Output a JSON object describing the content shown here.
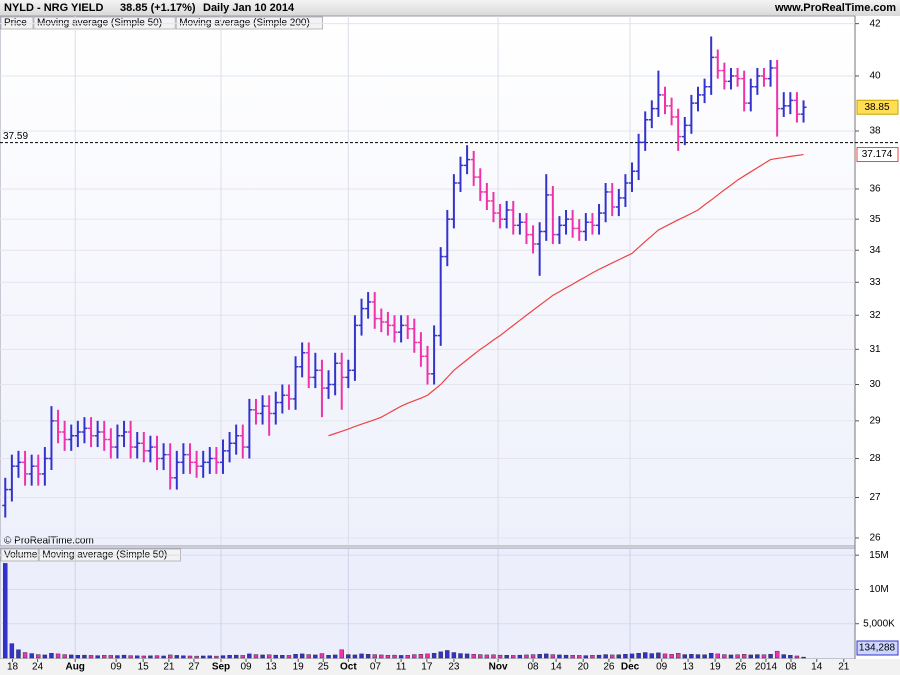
{
  "chart_data": {
    "type": "ohlc",
    "header": {
      "symbol": "NYLD - NRG YIELD",
      "quote": "38.85 (+1.17%)",
      "period": "Daily  Jan 10 2014",
      "site": "www.ProRealTime.com"
    },
    "legend": [
      {
        "name": "Price",
        "color": "#000000"
      },
      {
        "name": "Moving average (Simple 50)",
        "color": "#ee4444"
      },
      {
        "name": "Moving average (Simple 200)",
        "color": "#333366"
      }
    ],
    "watermark": "© ProRealTime.com",
    "up_color": "#3333cc",
    "down_color": "#ee33aa",
    "log_scale": true,
    "grid": true,
    "ylim": [
      25.83,
      42.3
    ],
    "yticks": [
      26,
      27,
      28,
      29,
      30,
      31,
      32,
      33,
      34,
      35,
      36,
      38,
      40,
      42
    ],
    "xlim": [
      -0.8,
      128.8
    ],
    "xticks": [
      {
        "value": 1.1,
        "label": "18"
      },
      {
        "value": 4.9,
        "label": "24"
      },
      {
        "value": 10.6,
        "label": "Aug"
      },
      {
        "value": 16.8,
        "label": "09"
      },
      {
        "value": 20.9,
        "label": "15"
      },
      {
        "value": 24.8,
        "label": "21"
      },
      {
        "value": 28.6,
        "label": "27"
      },
      {
        "value": 32.7,
        "label": "Sep"
      },
      {
        "value": 36.5,
        "label": "09"
      },
      {
        "value": 40.3,
        "label": "13"
      },
      {
        "value": 44.4,
        "label": "19"
      },
      {
        "value": 48.2,
        "label": "25"
      },
      {
        "value": 52.0,
        "label": "Oct"
      },
      {
        "value": 56.1,
        "label": "07"
      },
      {
        "value": 60.0,
        "label": "11"
      },
      {
        "value": 63.9,
        "label": "17"
      },
      {
        "value": 68.0,
        "label": "23"
      },
      {
        "value": 74.7,
        "label": "Nov"
      },
      {
        "value": 80.0,
        "label": "08"
      },
      {
        "value": 83.5,
        "label": "14"
      },
      {
        "value": 87.6,
        "label": "20"
      },
      {
        "value": 91.5,
        "label": "26"
      },
      {
        "value": 94.7,
        "label": "Dec"
      },
      {
        "value": 99.5,
        "label": "09"
      },
      {
        "value": 103.5,
        "label": "13"
      },
      {
        "value": 107.6,
        "label": "19"
      },
      {
        "value": 111.5,
        "label": "26"
      },
      {
        "value": 115.3,
        "label": "2014"
      },
      {
        "value": 119.1,
        "label": "08"
      },
      {
        "value": 123.0,
        "label": "14"
      },
      {
        "value": 127.1,
        "label": "21"
      }
    ],
    "hline": {
      "value": 37.59,
      "label": "37.59"
    },
    "bars": [
      [
        26.8,
        27.5,
        26.5,
        27.2
      ],
      [
        27.2,
        28.1,
        26.9,
        27.8
      ],
      [
        27.8,
        28.2,
        27.5,
        27.9
      ],
      [
        27.9,
        28.2,
        27.3,
        27.6
      ],
      [
        27.6,
        28.1,
        27.3,
        27.8
      ],
      [
        27.8,
        28.1,
        27.3,
        27.6
      ],
      [
        27.6,
        28.3,
        27.3,
        28.0
      ],
      [
        28.0,
        29.4,
        27.7,
        29.0
      ],
      [
        29.0,
        29.3,
        28.4,
        28.7
      ],
      [
        28.7,
        29.0,
        28.2,
        28.5
      ],
      [
        28.5,
        28.9,
        28.2,
        28.6
      ],
      [
        28.6,
        29.0,
        28.3,
        28.7
      ],
      [
        28.7,
        29.1,
        28.4,
        28.8
      ],
      [
        28.8,
        29.1,
        28.3,
        28.6
      ],
      [
        28.6,
        29.0,
        28.3,
        28.7
      ],
      [
        28.7,
        29.0,
        28.2,
        28.5
      ],
      [
        28.5,
        28.8,
        28.0,
        28.3
      ],
      [
        28.3,
        28.9,
        28.0,
        28.6
      ],
      [
        28.6,
        29.0,
        28.3,
        28.7
      ],
      [
        28.7,
        29.0,
        28.0,
        28.3
      ],
      [
        28.3,
        28.7,
        28.0,
        28.4
      ],
      [
        28.4,
        28.7,
        27.9,
        28.2
      ],
      [
        28.2,
        28.6,
        27.9,
        28.3
      ],
      [
        28.3,
        28.6,
        27.7,
        28.0
      ],
      [
        28.0,
        28.4,
        27.7,
        28.1
      ],
      [
        28.1,
        28.4,
        27.2,
        27.5
      ],
      [
        27.5,
        28.2,
        27.2,
        27.9
      ],
      [
        27.9,
        28.4,
        27.6,
        28.1
      ],
      [
        28.1,
        28.4,
        27.6,
        27.9
      ],
      [
        27.9,
        28.2,
        27.5,
        27.8
      ],
      [
        27.8,
        28.2,
        27.5,
        27.9
      ],
      [
        27.9,
        28.3,
        27.6,
        28.0
      ],
      [
        28.0,
        28.3,
        27.6,
        27.9
      ],
      [
        27.9,
        28.5,
        27.6,
        28.2
      ],
      [
        28.2,
        28.7,
        27.9,
        28.4
      ],
      [
        28.4,
        28.9,
        28.1,
        28.6
      ],
      [
        28.6,
        28.9,
        28.0,
        28.3
      ],
      [
        28.3,
        29.6,
        28.0,
        29.3
      ],
      [
        29.3,
        29.6,
        28.9,
        29.2
      ],
      [
        29.2,
        29.7,
        28.9,
        29.4
      ],
      [
        29.4,
        29.7,
        28.6,
        29.2
      ],
      [
        29.2,
        29.8,
        28.9,
        29.5
      ],
      [
        29.5,
        30.0,
        29.2,
        29.7
      ],
      [
        29.7,
        30.0,
        29.3,
        29.6
      ],
      [
        29.6,
        30.8,
        29.3,
        30.5
      ],
      [
        30.5,
        31.2,
        30.2,
        30.9
      ],
      [
        30.9,
        31.2,
        29.9,
        30.2
      ],
      [
        30.2,
        30.9,
        29.9,
        30.4
      ],
      [
        30.4,
        30.7,
        29.1,
        29.9
      ],
      [
        29.9,
        30.4,
        29.6,
        30.0
      ],
      [
        30.0,
        30.9,
        29.7,
        30.6
      ],
      [
        30.6,
        30.9,
        29.3,
        30.2
      ],
      [
        30.2,
        30.7,
        29.9,
        30.4
      ],
      [
        30.4,
        32.0,
        30.1,
        31.7
      ],
      [
        31.7,
        32.5,
        31.4,
        32.2
      ],
      [
        32.2,
        32.7,
        31.9,
        32.4
      ],
      [
        32.4,
        32.7,
        31.6,
        31.9
      ],
      [
        31.9,
        32.2,
        31.5,
        31.8
      ],
      [
        31.8,
        32.1,
        31.4,
        31.7
      ],
      [
        31.7,
        32.0,
        31.2,
        31.5
      ],
      [
        31.5,
        32.0,
        31.2,
        31.7
      ],
      [
        31.7,
        32.0,
        31.3,
        31.6
      ],
      [
        31.6,
        31.9,
        30.9,
        31.2
      ],
      [
        31.2,
        31.5,
        30.5,
        30.8
      ],
      [
        30.8,
        31.1,
        30.0,
        30.3
      ],
      [
        30.3,
        31.7,
        30.0,
        31.4
      ],
      [
        31.4,
        34.1,
        31.1,
        33.8
      ],
      [
        33.8,
        35.3,
        33.5,
        35.0
      ],
      [
        35.0,
        36.5,
        34.7,
        36.2
      ],
      [
        36.2,
        37.1,
        35.9,
        36.8
      ],
      [
        36.8,
        37.5,
        36.5,
        37.0
      ],
      [
        37.0,
        37.3,
        36.1,
        36.4
      ],
      [
        36.4,
        36.7,
        35.6,
        35.9
      ],
      [
        35.9,
        36.2,
        35.3,
        35.6
      ],
      [
        35.6,
        35.9,
        34.9,
        35.2
      ],
      [
        35.2,
        35.5,
        34.7,
        35.0
      ],
      [
        35.0,
        35.6,
        34.7,
        35.3
      ],
      [
        35.3,
        35.6,
        34.5,
        34.8
      ],
      [
        34.8,
        35.2,
        34.5,
        34.9
      ],
      [
        34.9,
        35.2,
        34.2,
        34.5
      ],
      [
        34.5,
        34.8,
        33.9,
        34.2
      ],
      [
        34.2,
        34.9,
        33.2,
        34.6
      ],
      [
        34.6,
        36.5,
        34.3,
        35.8
      ],
      [
        35.8,
        36.1,
        34.2,
        34.5
      ],
      [
        34.5,
        35.1,
        34.2,
        34.8
      ],
      [
        34.8,
        35.3,
        34.5,
        35.0
      ],
      [
        35.0,
        35.3,
        34.4,
        34.7
      ],
      [
        34.7,
        35.0,
        34.3,
        34.6
      ],
      [
        34.6,
        35.2,
        34.3,
        34.9
      ],
      [
        34.9,
        35.2,
        34.5,
        34.8
      ],
      [
        34.8,
        35.5,
        34.5,
        35.2
      ],
      [
        35.2,
        36.2,
        34.9,
        35.9
      ],
      [
        35.9,
        36.2,
        35.1,
        35.4
      ],
      [
        35.4,
        36.0,
        35.1,
        35.7
      ],
      [
        35.7,
        36.5,
        35.4,
        36.2
      ],
      [
        36.2,
        36.9,
        35.9,
        36.6
      ],
      [
        36.6,
        37.9,
        36.3,
        37.6
      ],
      [
        37.6,
        38.7,
        37.3,
        38.4
      ],
      [
        38.4,
        39.1,
        38.1,
        38.8
      ],
      [
        38.8,
        40.2,
        38.5,
        39.3
      ],
      [
        39.3,
        39.6,
        38.6,
        38.9
      ],
      [
        38.9,
        39.2,
        38.2,
        38.5
      ],
      [
        38.5,
        38.8,
        37.3,
        37.8
      ],
      [
        37.8,
        38.5,
        37.5,
        38.2
      ],
      [
        38.2,
        39.3,
        37.9,
        39.0
      ],
      [
        39.0,
        39.6,
        38.7,
        39.3
      ],
      [
        39.3,
        39.9,
        39.0,
        39.6
      ],
      [
        39.6,
        41.5,
        39.3,
        40.7
      ],
      [
        40.7,
        41.0,
        39.9,
        40.2
      ],
      [
        40.2,
        40.5,
        39.5,
        39.8
      ],
      [
        39.8,
        40.3,
        39.5,
        40.0
      ],
      [
        40.0,
        40.3,
        39.6,
        39.9
      ],
      [
        39.9,
        40.2,
        38.7,
        39.0
      ],
      [
        39.0,
        39.9,
        38.7,
        39.6
      ],
      [
        39.6,
        40.3,
        39.3,
        40.0
      ],
      [
        40.0,
        40.3,
        39.6,
        39.9
      ],
      [
        39.9,
        40.6,
        39.6,
        40.3
      ],
      [
        40.3,
        40.6,
        37.8,
        38.8
      ],
      [
        38.8,
        39.4,
        38.5,
        38.9
      ],
      [
        38.9,
        39.4,
        38.6,
        39.1
      ],
      [
        39.1,
        39.4,
        38.3,
        38.6
      ],
      [
        38.6,
        39.1,
        38.3,
        38.85
      ]
    ],
    "ma50": {
      "name": "Moving average (Simple 50)",
      "color": "#ee4444",
      "values": [
        null,
        null,
        null,
        null,
        null,
        null,
        null,
        null,
        null,
        null,
        null,
        null,
        null,
        null,
        null,
        null,
        null,
        null,
        null,
        null,
        null,
        null,
        null,
        null,
        null,
        null,
        null,
        null,
        null,
        null,
        null,
        null,
        null,
        null,
        null,
        null,
        null,
        null,
        null,
        null,
        null,
        null,
        null,
        null,
        null,
        null,
        null,
        null,
        null,
        28.6,
        28.66,
        28.72,
        28.78,
        28.85,
        28.91,
        28.97,
        29.03,
        29.1,
        29.2,
        29.3,
        29.4,
        29.48,
        29.55,
        29.62,
        29.7,
        29.85,
        30.0,
        30.2,
        30.4,
        30.55,
        30.7,
        30.85,
        31.0,
        31.13,
        31.27,
        31.4,
        31.55,
        31.7,
        31.85,
        32.0,
        32.15,
        32.3,
        32.45,
        32.6,
        32.71,
        32.83,
        32.94,
        33.06,
        33.17,
        33.29,
        33.4,
        33.5,
        33.6,
        33.7,
        33.8,
        33.9,
        34.09,
        34.28,
        34.46,
        34.65,
        34.76,
        34.87,
        34.98,
        35.08,
        35.19,
        35.3,
        35.47,
        35.63,
        35.8,
        35.97,
        36.13,
        36.3,
        36.44,
        36.58,
        36.72,
        36.86,
        37.0,
        37.04,
        37.07,
        37.11,
        37.14,
        37.174
      ]
    },
    "volume": {
      "legend": [
        {
          "name": "Volume",
          "color": "#3333cc"
        },
        {
          "name": "Moving average (Simple 50)",
          "color": "#ee33aa"
        }
      ],
      "ylim": [
        0,
        15900000
      ],
      "yticks": [
        {
          "value": 15000000,
          "label": "15M"
        },
        {
          "value": 10000000,
          "label": "10M"
        },
        {
          "value": 5000000,
          "label": "5,000K"
        }
      ],
      "last_label": "134,288",
      "values": [
        13800000,
        2100000,
        1200000,
        800000,
        650000,
        500000,
        450000,
        700000,
        600000,
        500000,
        450000,
        400000,
        420000,
        380000,
        350000,
        400000,
        380000,
        360000,
        420000,
        350000,
        330000,
        300000,
        320000,
        350000,
        300000,
        450000,
        380000,
        330000,
        300000,
        280000,
        300000,
        320000,
        280000,
        350000,
        400000,
        420000,
        380000,
        600000,
        500000,
        450000,
        480000,
        420000,
        400000,
        380000,
        550000,
        600000,
        500000,
        450000,
        650000,
        400000,
        450000,
        1200000,
        500000,
        450000,
        600000,
        550000,
        500000,
        450000,
        400000,
        420000,
        380000,
        400000,
        500000,
        550000,
        600000,
        700000,
        900000,
        1100000,
        800000,
        650000,
        600000,
        550000,
        500000,
        450000,
        480000,
        420000,
        400000,
        380000,
        420000,
        450000,
        500000,
        550000,
        600000,
        500000,
        450000,
        420000,
        400000,
        380000,
        350000,
        400000,
        420000,
        500000,
        450000,
        480000,
        550000,
        600000,
        700000,
        800000,
        650000,
        750000,
        600000,
        550000,
        700000,
        500000,
        550000,
        500000,
        480000,
        700000,
        600000,
        500000,
        450000,
        480000,
        550000,
        450000,
        500000,
        480000,
        550000,
        1000000,
        500000,
        400000,
        300000,
        134288
      ]
    }
  }
}
